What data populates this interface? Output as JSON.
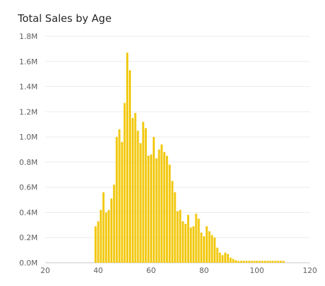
{
  "chart_data": {
    "type": "bar",
    "title": "Total Sales by Age",
    "xlabel": "",
    "ylabel": "",
    "xlim": [
      20,
      120
    ],
    "ylim": [
      0,
      1800000
    ],
    "x_ticks": [
      20,
      40,
      60,
      80,
      100,
      120
    ],
    "y_ticks": [
      0,
      200000,
      400000,
      600000,
      800000,
      1000000,
      1200000,
      1400000,
      1600000,
      1800000
    ],
    "x_tick_labels": [
      "20",
      "40",
      "60",
      "80",
      "100",
      "120"
    ],
    "y_tick_labels": [
      "0.0M",
      "0.2M",
      "0.4M",
      "0.6M",
      "0.8M",
      "1.0M",
      "1.2M",
      "1.4M",
      "1.6M",
      "1.8M"
    ],
    "grid": true,
    "bar_color": "#F2C80F",
    "series": [
      {
        "x": [
          39,
          40,
          41,
          42,
          43,
          44,
          45,
          46,
          47,
          48,
          49,
          50,
          51,
          52,
          53,
          54,
          55,
          56,
          57,
          58,
          59,
          60,
          61,
          62,
          63,
          64,
          65,
          66,
          67,
          68,
          69,
          70,
          71,
          72,
          73,
          74,
          75,
          76,
          77,
          78,
          79,
          80,
          81,
          82,
          83,
          84,
          85,
          86,
          87,
          88,
          89,
          90,
          91,
          92,
          93,
          94,
          95,
          96,
          97,
          98,
          99,
          100,
          101,
          102,
          103,
          104,
          105,
          106,
          107,
          108,
          109,
          110
        ],
        "values": [
          290000,
          330000,
          420000,
          560000,
          400000,
          420000,
          510000,
          620000,
          1000000,
          1060000,
          960000,
          1270000,
          1670000,
          1530000,
          1150000,
          1190000,
          1050000,
          950000,
          1120000,
          1070000,
          850000,
          860000,
          1000000,
          830000,
          900000,
          940000,
          880000,
          850000,
          780000,
          650000,
          560000,
          410000,
          420000,
          330000,
          310000,
          380000,
          280000,
          290000,
          390000,
          350000,
          240000,
          210000,
          290000,
          250000,
          220000,
          200000,
          120000,
          80000,
          60000,
          80000,
          70000,
          40000,
          30000,
          20000,
          15000,
          15000,
          15000,
          15000,
          15000,
          15000,
          15000,
          15000,
          15000,
          15000,
          15000,
          15000,
          15000,
          15000,
          15000,
          15000,
          15000,
          15000
        ]
      }
    ]
  }
}
